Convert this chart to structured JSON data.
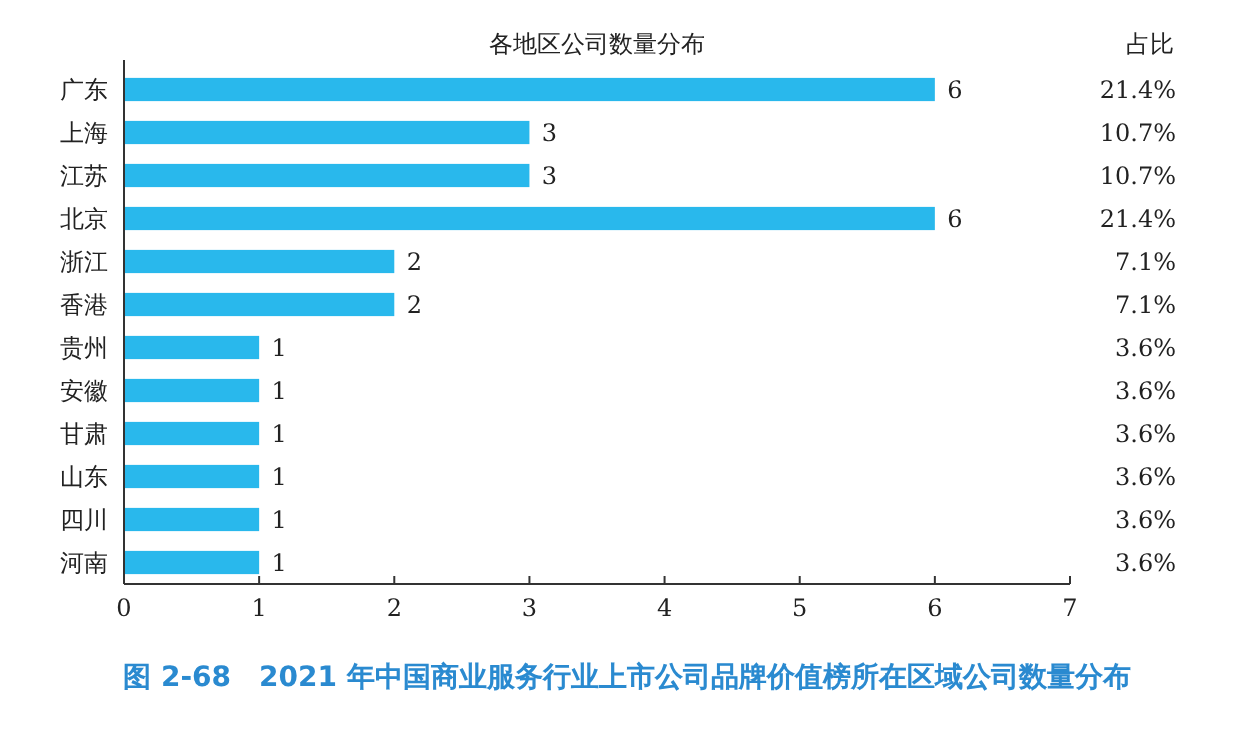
{
  "chart_data": {
    "type": "bar",
    "orientation": "horizontal",
    "title": "各地区公司数量分布",
    "categories": [
      "广东",
      "上海",
      "江苏",
      "北京",
      "浙江",
      "香港",
      "贵州",
      "安徽",
      "甘肃",
      "山东",
      "四川",
      "河南"
    ],
    "values": [
      6,
      3,
      3,
      6,
      2,
      2,
      1,
      1,
      1,
      1,
      1,
      1
    ],
    "color": "#29b8ec",
    "data_labels": true,
    "xlim": [
      0,
      7
    ],
    "xticks": [
      0,
      1,
      2,
      3,
      4,
      5,
      6,
      7
    ],
    "annotations": [
      "占比",
      "21.4%",
      "10.7%",
      "10.7%",
      "21.4%",
      "7.1%",
      "7.1%",
      "3.6%",
      "3.6%",
      "3.6%",
      "3.6%",
      "3.6%",
      "3.6%",
      "图 2-68　2021 年中国商业服务行业上市公司品牌价值榜所在区域公司数量分布"
    ]
  }
}
